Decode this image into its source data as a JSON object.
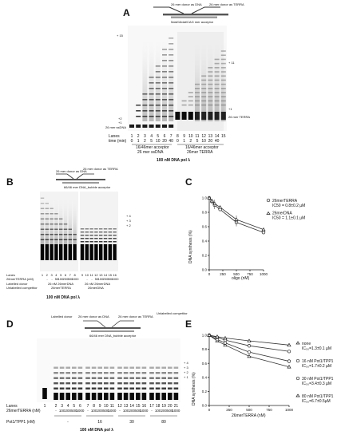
{
  "panels": {
    "a": {
      "letter": "A",
      "schema_top_left": "26 mer donor as DNA",
      "schema_top_right": "26 mer donor as TERRA",
      "schema_bottom": "5dat/16dat/CAG mer acceptor",
      "marker_plus15": "+ 15",
      "marker_plus2": "+2",
      "marker_plus1": "+1",
      "marker_ssdna": "26 mer ssDNA",
      "marker_plus11": "+ 11",
      "marker_plus1b": "+1",
      "marker_terra": "26 mer TERRA",
      "lanes_label": "Lanes",
      "time_label": "time (min)",
      "lanes": [
        "1",
        "2",
        "3",
        "4",
        "5",
        "6",
        "7",
        "8",
        "9",
        "10",
        "11",
        "12",
        "13",
        "14",
        "15"
      ],
      "times": [
        "0",
        "1",
        "2",
        "5",
        "10",
        "20",
        "40",
        "0",
        "1",
        "2",
        "5",
        "10",
        "20",
        "40",
        ""
      ],
      "group1_acceptor": "16/46mer acceptor",
      "group1_donor": "26 mer ssDNA",
      "group2_acceptor": "16/46mer acceptor",
      "group2_donor": "26mer TERRA",
      "caption": "100 nM DNA pol λ"
    },
    "b": {
      "letter": "B",
      "schema_left": "26 mer donor as DNA",
      "schema_right": "26 mer donor as TERRA",
      "schema_bottom": "66/46 mer DNA_bubble acceptor",
      "lanes_label": "Lanes",
      "lanes": [
        "1",
        "2",
        "3",
        "4",
        "5",
        "6",
        "7",
        "8",
        "9",
        "10",
        "11",
        "12",
        "13",
        "14",
        "15",
        "16"
      ],
      "row2_label": "26merTERRA (nM)",
      "row2": [
        "-",
        "-",
        "50",
        "100",
        "200",
        "500",
        "1000",
        "-",
        "-",
        "50",
        "100",
        "200",
        "500",
        "1000"
      ],
      "row3_label": "Labelled donor",
      "row3a": "26 nM 26merDNA",
      "row3b": "26 nM 26merDNA",
      "row4_label": "Unlabelled competitor",
      "row4a": "26merTERRA",
      "row4b": "26merDNA",
      "caption": "100 nM DNA pol λ",
      "side_markers": [
        "+ 4",
        "+ 3",
        "+ 2"
      ]
    },
    "c": {
      "letter": "C",
      "ylabel": "DNA synthesis (%)",
      "xlabel": "oligo (nM)",
      "legend": [
        {
          "name": "26merTERRA",
          "ic50": "IC50 = 0.8±0.2 µM"
        },
        {
          "name": "26merDNA",
          "ic50": "IC50 = 1.1±0.1 µM"
        }
      ]
    },
    "d": {
      "letter": "D",
      "schema_labelled": "Labelled donor",
      "schema_left": "26 mer donor as DNA",
      "schema_right": "26 mer donor as TERRA",
      "schema_unlabelled": "Unlabelled competitor",
      "schema_bottom": "66/46 mer DNA_bubble acceptor",
      "lanes_label": "Lanes",
      "row2_label": "26merTERRA (nM)",
      "row3_label": "Pot1/TPP1 (nM)",
      "lanes": [
        "1",
        "2",
        "3",
        "4",
        "5",
        "6",
        "7",
        "8",
        "9",
        "10",
        "11",
        "12",
        "13",
        "14",
        "15",
        "16",
        "17",
        "18",
        "19",
        "20",
        "21"
      ],
      "groups": [
        {
          "conc": [
            "-",
            "100",
            "200",
            "500",
            "1000"
          ],
          "pot": "-"
        },
        {
          "conc": [
            "-",
            "100",
            "200",
            "500",
            "1000"
          ],
          "pot": "16"
        },
        {
          "conc": [
            "-",
            "100",
            "200",
            "500",
            "1000"
          ],
          "pot": "30"
        },
        {
          "conc": [
            "-",
            "100",
            "200",
            "500",
            "1000"
          ],
          "pot": "80"
        }
      ],
      "caption": "100 nM DNA pol λ",
      "side_markers": [
        "+ 4",
        "+ 3",
        "+ 2",
        "+ 1"
      ]
    },
    "e": {
      "letter": "E",
      "ylabel": "DNA synthesis (%)",
      "xlabel": "26merTERRA (nM)",
      "legend": [
        {
          "name": "none",
          "ic50": "IC₅₀=1.3±0.1 µM"
        },
        {
          "name": "16 nM Pot1/TPP1",
          "ic50": "IC₅₀=1.7±0.2 µM"
        },
        {
          "name": "30 nM Pot1/TPP1",
          "ic50": "IC₅₀=3.4±0.3 µM"
        },
        {
          "name": "80 nM Pot1/TPP1",
          "ic50": "IC₅₀=6.7±0.5µM"
        }
      ]
    }
  },
  "chart_data": [
    {
      "type": "scatter",
      "panel": "C",
      "xlabel": "oligo (nM)",
      "ylabel": "DNA synthesis (%)",
      "xlim": [
        0,
        1000
      ],
      "ylim": [
        0,
        1.0
      ],
      "xticks": [
        0,
        250,
        500,
        750,
        1000
      ],
      "yticks": [
        0,
        0.2,
        0.4,
        0.6,
        0.8,
        1.0
      ],
      "series": [
        {
          "name": "26merTERRA",
          "marker": "circle",
          "x": [
            0,
            50,
            100,
            200,
            500,
            1000
          ],
          "y": [
            1.0,
            0.95,
            0.9,
            0.84,
            0.66,
            0.52
          ]
        },
        {
          "name": "26merDNA",
          "marker": "triangle",
          "x": [
            0,
            50,
            100,
            200,
            500,
            1000
          ],
          "y": [
            1.0,
            0.96,
            0.92,
            0.87,
            0.7,
            0.56
          ]
        }
      ]
    },
    {
      "type": "scatter",
      "panel": "E",
      "xlabel": "26merTERRA (nM)",
      "ylabel": "DNA synthesis (%)",
      "xlim": [
        0,
        1000
      ],
      "ylim": [
        0,
        1.0
      ],
      "xticks": [
        0,
        250,
        500,
        750,
        1000
      ],
      "yticks": [
        0,
        0.2,
        0.4,
        0.6,
        0.8,
        1.0
      ],
      "series": [
        {
          "name": "none",
          "marker": "triangle",
          "x": [
            0,
            100,
            200,
            500,
            1000
          ],
          "y": [
            1.0,
            0.92,
            0.86,
            0.7,
            0.55
          ]
        },
        {
          "name": "16 nM Pot1/TPP1",
          "marker": "circle",
          "x": [
            0,
            100,
            200,
            500,
            1000
          ],
          "y": [
            1.0,
            0.94,
            0.89,
            0.76,
            0.63
          ]
        },
        {
          "name": "30 nM Pot1/TPP1",
          "marker": "circle",
          "x": [
            0,
            100,
            200,
            500,
            1000
          ],
          "y": [
            1.0,
            0.97,
            0.93,
            0.85,
            0.77
          ]
        },
        {
          "name": "80 nM Pot1/TPP1",
          "marker": "triangle",
          "x": [
            0,
            100,
            200,
            500,
            1000
          ],
          "y": [
            1.0,
            0.98,
            0.96,
            0.92,
            0.86
          ]
        }
      ]
    }
  ]
}
